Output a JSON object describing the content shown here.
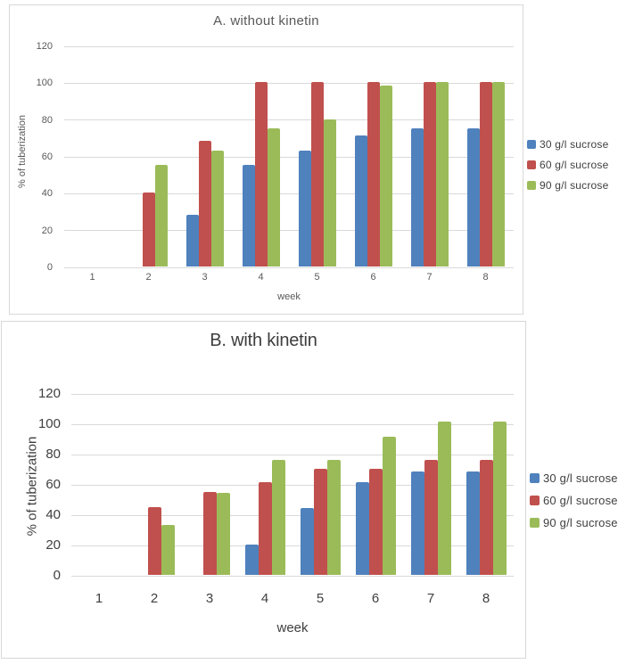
{
  "figure": {
    "background": "#ffffff",
    "grid_color": "#d9d9d9",
    "border_color": "#d8d8d8"
  },
  "chart_data": [
    {
      "type": "bar",
      "title": "A. without kinetin",
      "xlabel": "week",
      "ylabel": "% of tuberization",
      "categories": [
        "1",
        "2",
        "3",
        "4",
        "5",
        "6",
        "7",
        "8"
      ],
      "ylim": [
        0,
        120
      ],
      "yticks": [
        120,
        100,
        80,
        60,
        40,
        20,
        0
      ],
      "grid": true,
      "legend_position": "right",
      "series": [
        {
          "name": "30 g/l sucrose",
          "color": "#4F81BD",
          "values": [
            0,
            0,
            28,
            55,
            63,
            71,
            75,
            75
          ]
        },
        {
          "name": "60 g/l sucrose",
          "color": "#C0504D",
          "values": [
            0,
            40,
            68,
            100,
            100,
            100,
            100,
            100
          ]
        },
        {
          "name": "90 g/l sucrose",
          "color": "#9BBB59",
          "values": [
            0,
            55,
            63,
            75,
            80,
            98,
            100,
            100
          ]
        }
      ]
    },
    {
      "type": "bar",
      "title": "B. with kinetin",
      "xlabel": "week",
      "ylabel": "% of tuberization",
      "categories": [
        "1",
        "2",
        "3",
        "4",
        "5",
        "6",
        "7",
        "8"
      ],
      "ylim": [
        0,
        120
      ],
      "yticks": [
        120,
        100,
        80,
        60,
        40,
        20,
        0
      ],
      "grid": true,
      "legend_position": "right",
      "series": [
        {
          "name": "30 g/l sucrose",
          "color": "#4F81BD",
          "values": [
            0,
            0,
            0,
            20,
            44,
            61,
            68,
            68
          ]
        },
        {
          "name": "60 g/l sucrose",
          "color": "#C0504D",
          "values": [
            0,
            45,
            55,
            61,
            70,
            70,
            76,
            76
          ]
        },
        {
          "name": "90 g/l sucrose",
          "color": "#9BBB59",
          "values": [
            0,
            33,
            54,
            76,
            76,
            91,
            101,
            101
          ]
        }
      ]
    }
  ]
}
